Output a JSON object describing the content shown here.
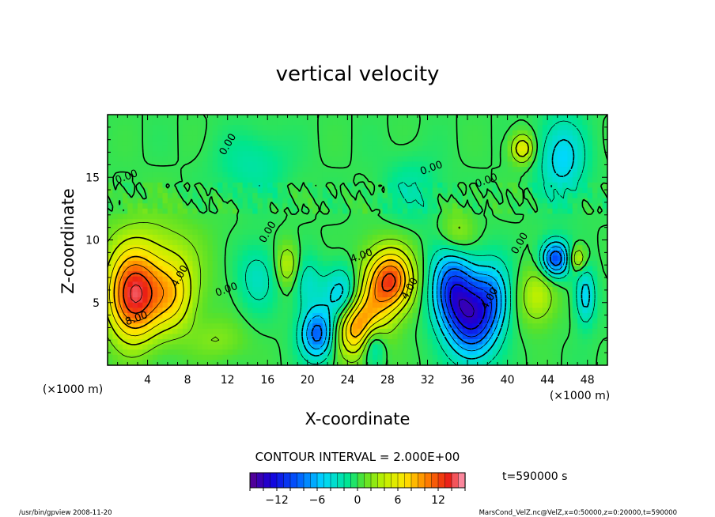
{
  "chart_data": {
    "type": "heatmap",
    "title": "vertical velocity",
    "xlabel": "X-coordinate",
    "ylabel": "Z-coordinate",
    "x_unit_left": "(×1000 m)",
    "x_unit_right": "(×1000 m)",
    "xlim": [
      0,
      50
    ],
    "ylim": [
      0,
      20
    ],
    "x_ticks": [
      4,
      8,
      12,
      16,
      20,
      24,
      28,
      32,
      36,
      40,
      44,
      48
    ],
    "y_ticks": [
      5,
      10,
      15
    ],
    "contour_interval_text": "CONTOUR INTERVAL = 2.000E+00",
    "time_text": "t=590000 s",
    "colorbar": {
      "min": -16,
      "max": 16,
      "step": 1,
      "tick_values": [
        -12,
        -6,
        0,
        6,
        12
      ]
    },
    "contour_labels": [
      {
        "text": "0.00",
        "x": 2,
        "y": 14.8
      },
      {
        "text": "0.00",
        "x": 12.3,
        "y": 17.5
      },
      {
        "text": "0.00",
        "x": 12.0,
        "y": 5.8
      },
      {
        "text": "4.00",
        "x": 7.5,
        "y": 7.0
      },
      {
        "text": "8.00",
        "x": 3.0,
        "y": 3.5
      },
      {
        "text": "0.00",
        "x": 16.3,
        "y": 10.5
      },
      {
        "text": "4.00",
        "x": 25.5,
        "y": 8.5
      },
      {
        "text": "4.00",
        "x": 30.5,
        "y": 6.0
      },
      {
        "text": "0.00",
        "x": 32.5,
        "y": 15.5
      },
      {
        "text": "4.00",
        "x": 38.5,
        "y": 5.2
      },
      {
        "text": "0.00",
        "x": 38.0,
        "y": 14.5
      },
      {
        "text": "0.00",
        "x": 41.5,
        "y": 9.6
      }
    ],
    "field_features": [
      {
        "x": 2.6,
        "y": 5.4,
        "amplitude": 13,
        "sx": 1.8,
        "sy": 2.4
      },
      {
        "x": 6.5,
        "y": 5.5,
        "amplitude": 6,
        "sx": 1.6,
        "sy": 2.0
      },
      {
        "x": 4.5,
        "y": 8.5,
        "amplitude": 3,
        "sx": 3.5,
        "sy": 2.5
      },
      {
        "x": 21.0,
        "y": 2.5,
        "amplitude": -9,
        "sx": 1.2,
        "sy": 1.4
      },
      {
        "x": 23.5,
        "y": 5.5,
        "amplitude": -6,
        "sx": 1.3,
        "sy": 1.6
      },
      {
        "x": 20.0,
        "y": 6.5,
        "amplitude": -3,
        "sx": 1.0,
        "sy": 1.5
      },
      {
        "x": 26.5,
        "y": 1.8,
        "amplitude": -6,
        "sx": 0.9,
        "sy": 1.2
      },
      {
        "x": 28.5,
        "y": 6.8,
        "amplitude": 11,
        "sx": 1.5,
        "sy": 1.7
      },
      {
        "x": 24.8,
        "y": 3.0,
        "amplitude": 9,
        "sx": 1.5,
        "sy": 1.6
      },
      {
        "x": 26.5,
        "y": 5.0,
        "amplitude": 5,
        "sx": 1.5,
        "sy": 2.5
      },
      {
        "x": 18.0,
        "y": 8.0,
        "amplitude": 4,
        "sx": 0.8,
        "sy": 1.2
      },
      {
        "x": 15.0,
        "y": 7.0,
        "amplitude": -3,
        "sx": 1.4,
        "sy": 1.8
      },
      {
        "x": 34.5,
        "y": 6.0,
        "amplitude": -10,
        "sx": 1.5,
        "sy": 2.2
      },
      {
        "x": 36.5,
        "y": 3.5,
        "amplitude": -10,
        "sx": 1.6,
        "sy": 2.2
      },
      {
        "x": 38.5,
        "y": 5.5,
        "amplitude": -6,
        "sx": 1.3,
        "sy": 2.0
      },
      {
        "x": 44.8,
        "y": 8.5,
        "amplitude": -10,
        "sx": 1.0,
        "sy": 1.0
      },
      {
        "x": 45.5,
        "y": 16.5,
        "amplitude": -5,
        "sx": 1.6,
        "sy": 2.2
      },
      {
        "x": 47.8,
        "y": 5.5,
        "amplitude": -5,
        "sx": 0.7,
        "sy": 1.6
      },
      {
        "x": 47.0,
        "y": 8.5,
        "amplitude": 5,
        "sx": 0.6,
        "sy": 0.7
      },
      {
        "x": 41.5,
        "y": 17.3,
        "amplitude": 6,
        "sx": 0.8,
        "sy": 0.8
      },
      {
        "x": 43.0,
        "y": 5.5,
        "amplitude": 4,
        "sx": 1.3,
        "sy": 1.6
      },
      {
        "x": 35.0,
        "y": 10.5,
        "amplitude": 3,
        "sx": 1.2,
        "sy": 1.3
      },
      {
        "x": 14.5,
        "y": 16.0,
        "amplitude": -2,
        "sx": 2.5,
        "sy": 1.8
      },
      {
        "x": 30.5,
        "y": 14.0,
        "amplitude": -2,
        "sx": 2.0,
        "sy": 1.8
      },
      {
        "x": 11.0,
        "y": 2.0,
        "amplitude": 2,
        "sx": 2.0,
        "sy": 1.2
      }
    ]
  },
  "footer": {
    "left": "/usr/bin/gpview   2008-11-20",
    "right": "MarsCond_VelZ.nc@VelZ,x=0:50000,z=0:20000,t=590000"
  }
}
